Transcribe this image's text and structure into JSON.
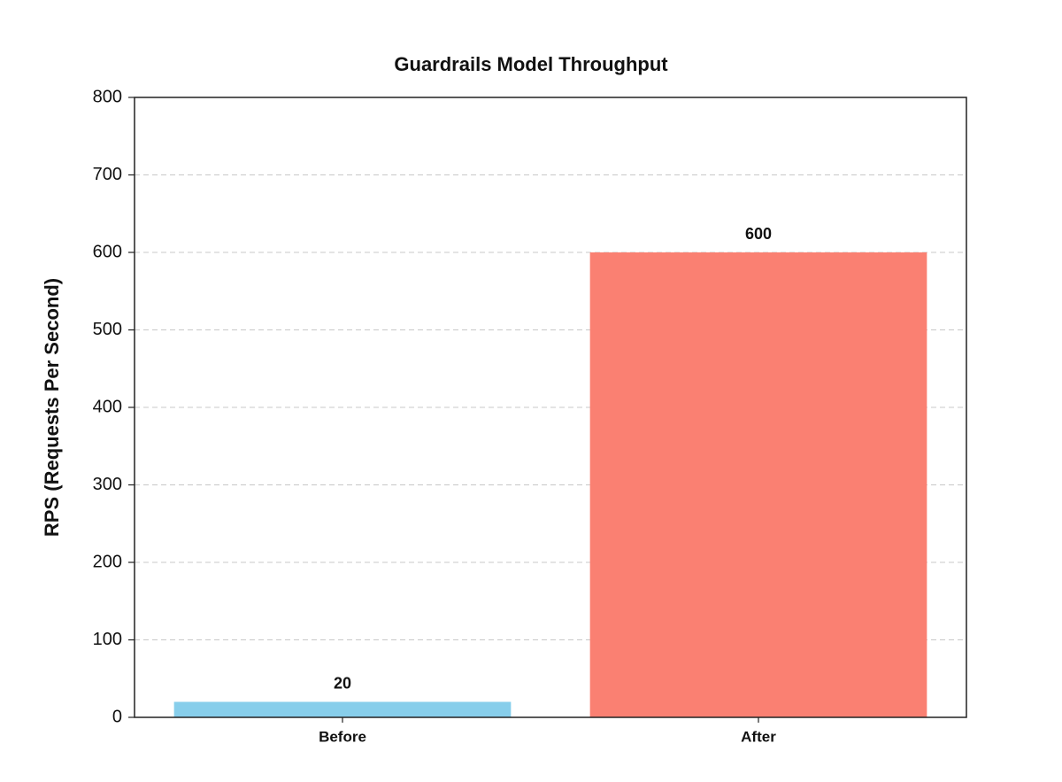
{
  "chart_data": {
    "type": "bar",
    "title": "Guardrails Model Throughput",
    "y_label": "RPS (Requests Per Second)",
    "categories": [
      "Before",
      "After"
    ],
    "values": [
      20,
      600
    ],
    "colors": [
      "#87ceeb",
      "#fa8072"
    ],
    "ylim": [
      0,
      800
    ],
    "yticks": [
      0,
      100,
      200,
      300,
      400,
      500,
      600,
      700,
      800
    ],
    "grid": true
  }
}
